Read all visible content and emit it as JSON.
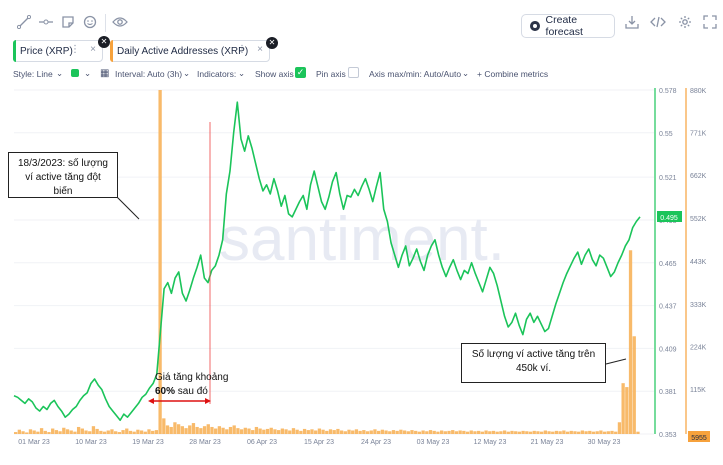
{
  "toolbar": {
    "icons": [
      "line-tool-icon",
      "horizontal-line-icon",
      "note-icon",
      "emoji-icon",
      "eye-icon"
    ],
    "forecast_label": "Create forecast",
    "right_icons": [
      "download-icon",
      "embed-code-icon",
      "settings-icon",
      "fullscreen-icon"
    ]
  },
  "metrics": [
    {
      "label": "Price (XRP)",
      "color": "#1bc45a"
    },
    {
      "label": "Daily Active Addresses (XRP)",
      "color": "#f7a23c"
    }
  ],
  "settings": {
    "style": "Style: Line",
    "interval": "Interval: Auto (3h)",
    "indicators": "Indicators:",
    "show_axis": "Show axis",
    "pin_axis": "Pin axis",
    "axis_minmax": "Axis max/min: Auto/Auto",
    "combine": "+ Combine metrics"
  },
  "watermark": "santiment.",
  "annotations": {
    "spike_note": [
      "18/3/2023: số lượng",
      "ví active tăng đột biến"
    ],
    "price_note": [
      "Giá tăng khoảng",
      "60%",
      " sau đó"
    ],
    "wallets_note": [
      "Số lượng ví active tăng trên",
      "450k ví."
    ]
  },
  "chart_data": {
    "type": "line",
    "x_tick_labels": [
      "01 Mar 23",
      "10 Mar 23",
      "19 Mar 23",
      "28 Mar 23",
      "06 Apr 23",
      "15 Apr 23",
      "24 Apr 23",
      "03 May 23",
      "12 May 23",
      "21 May 23",
      "30 May 23"
    ],
    "price_axis": {
      "ticks": [
        "0.578",
        "0.55",
        "0.521",
        "0.493",
        "0.465",
        "0.437",
        "0.409",
        "0.381",
        "0.353"
      ],
      "current": "0.495",
      "range": [
        0.353,
        0.578
      ]
    },
    "daa_axis": {
      "ticks": [
        "880K",
        "771K",
        "662K",
        "552K",
        "443K",
        "333K",
        "224K",
        "115K"
      ],
      "current": "5955",
      "range": [
        0,
        880000
      ]
    },
    "series": [
      {
        "name": "Price (XRP)",
        "color": "#1bc45a",
        "values": [
          0.378,
          0.377,
          0.375,
          0.373,
          0.376,
          0.374,
          0.37,
          0.368,
          0.371,
          0.369,
          0.373,
          0.375,
          0.371,
          0.368,
          0.364,
          0.366,
          0.369,
          0.371,
          0.375,
          0.378,
          0.38,
          0.386,
          0.389,
          0.385,
          0.382,
          0.376,
          0.371,
          0.368,
          0.365,
          0.362,
          0.366,
          0.364,
          0.367,
          0.37,
          0.373,
          0.377,
          0.379,
          0.383,
          0.386,
          0.392,
          0.42,
          0.448,
          0.452,
          0.445,
          0.455,
          0.459,
          0.445,
          0.44,
          0.447,
          0.455,
          0.462,
          0.47,
          0.455,
          0.452,
          0.46,
          0.463,
          0.47,
          0.48,
          0.51,
          0.525,
          0.55,
          0.57,
          0.546,
          0.538,
          0.548,
          0.54,
          0.53,
          0.52,
          0.512,
          0.516,
          0.51,
          0.52,
          0.512,
          0.502,
          0.509,
          0.497,
          0.495,
          0.5,
          0.505,
          0.509,
          0.5,
          0.516,
          0.525,
          0.515,
          0.505,
          0.5,
          0.508,
          0.518,
          0.524,
          0.51,
          0.5,
          0.509,
          0.508,
          0.513,
          0.509,
          0.515,
          0.52,
          0.513,
          0.505,
          0.515,
          0.524,
          0.5,
          0.492,
          0.478,
          0.47,
          0.462,
          0.47,
          0.476,
          0.463,
          0.468,
          0.474,
          0.466,
          0.46,
          0.47,
          0.476,
          0.48,
          0.47,
          0.462,
          0.456,
          0.462,
          0.467,
          0.46,
          0.454,
          0.46,
          0.458,
          0.465,
          0.458,
          0.452,
          0.446,
          0.454,
          0.462,
          0.458,
          0.45,
          0.44,
          0.43,
          0.423,
          0.426,
          0.432,
          0.424,
          0.418,
          0.428,
          0.432,
          0.426,
          0.43,
          0.425,
          0.42,
          0.422,
          0.43,
          0.438,
          0.445,
          0.452,
          0.458,
          0.463,
          0.468,
          0.472,
          0.464,
          0.47,
          0.474,
          0.467,
          0.463,
          0.47,
          0.468,
          0.462,
          0.456,
          0.459,
          0.465,
          0.47,
          0.476,
          0.48,
          0.488,
          0.492,
          0.495
        ]
      },
      {
        "name": "Daily Active Addresses (XRP)",
        "color": "#f7a23c",
        "values": [
          5000,
          11000,
          7000,
          4000,
          12000,
          9000,
          6000,
          15000,
          8000,
          5000,
          14000,
          10000,
          7000,
          16000,
          12000,
          9000,
          6000,
          18000,
          14000,
          9000,
          7000,
          20000,
          13000,
          8000,
          6000,
          9000,
          12000,
          7000,
          5000,
          10000,
          14000,
          8000,
          6000,
          11000,
          9000,
          6000,
          12000,
          8000,
          10000,
          880000,
          40000,
          22000,
          18000,
          30000,
          25000,
          20000,
          15000,
          22000,
          28000,
          18000,
          15000,
          20000,
          25000,
          18000,
          14000,
          20000,
          16000,
          12000,
          18000,
          22000,
          15000,
          12000,
          16000,
          14000,
          10000,
          18000,
          14000,
          11000,
          13000,
          16000,
          12000,
          10000,
          14000,
          12000,
          9000,
          15000,
          11000,
          8000,
          13000,
          10000,
          12000,
          9000,
          14000,
          11000,
          8000,
          12000,
          10000,
          13000,
          9000,
          7000,
          11000,
          9000,
          12000,
          8000,
          10000,
          7000,
          9000,
          12000,
          8000,
          11000,
          9000,
          7000,
          10000,
          8000,
          11000,
          9000,
          7000,
          10000,
          8000,
          6000,
          9000,
          7000,
          10000,
          8000,
          6000,
          9000,
          7000,
          8000,
          10000,
          7000,
          9000,
          8000,
          6000,
          9000,
          7000,
          8000,
          6000,
          9000,
          7000,
          8000,
          6000,
          7000,
          9000,
          6000,
          8000,
          7000,
          6000,
          8000,
          7000,
          6000,
          8000,
          7000,
          6000,
          9000,
          7000,
          6000,
          8000,
          7000,
          9000,
          6000,
          8000,
          7000,
          6000,
          9000,
          7000,
          8000,
          6000,
          7000,
          9000,
          6000,
          7000,
          8000,
          6000,
          30000,
          130000,
          120000,
          470000,
          250000,
          5955
        ]
      }
    ],
    "spike_date": "18/3/2023"
  }
}
